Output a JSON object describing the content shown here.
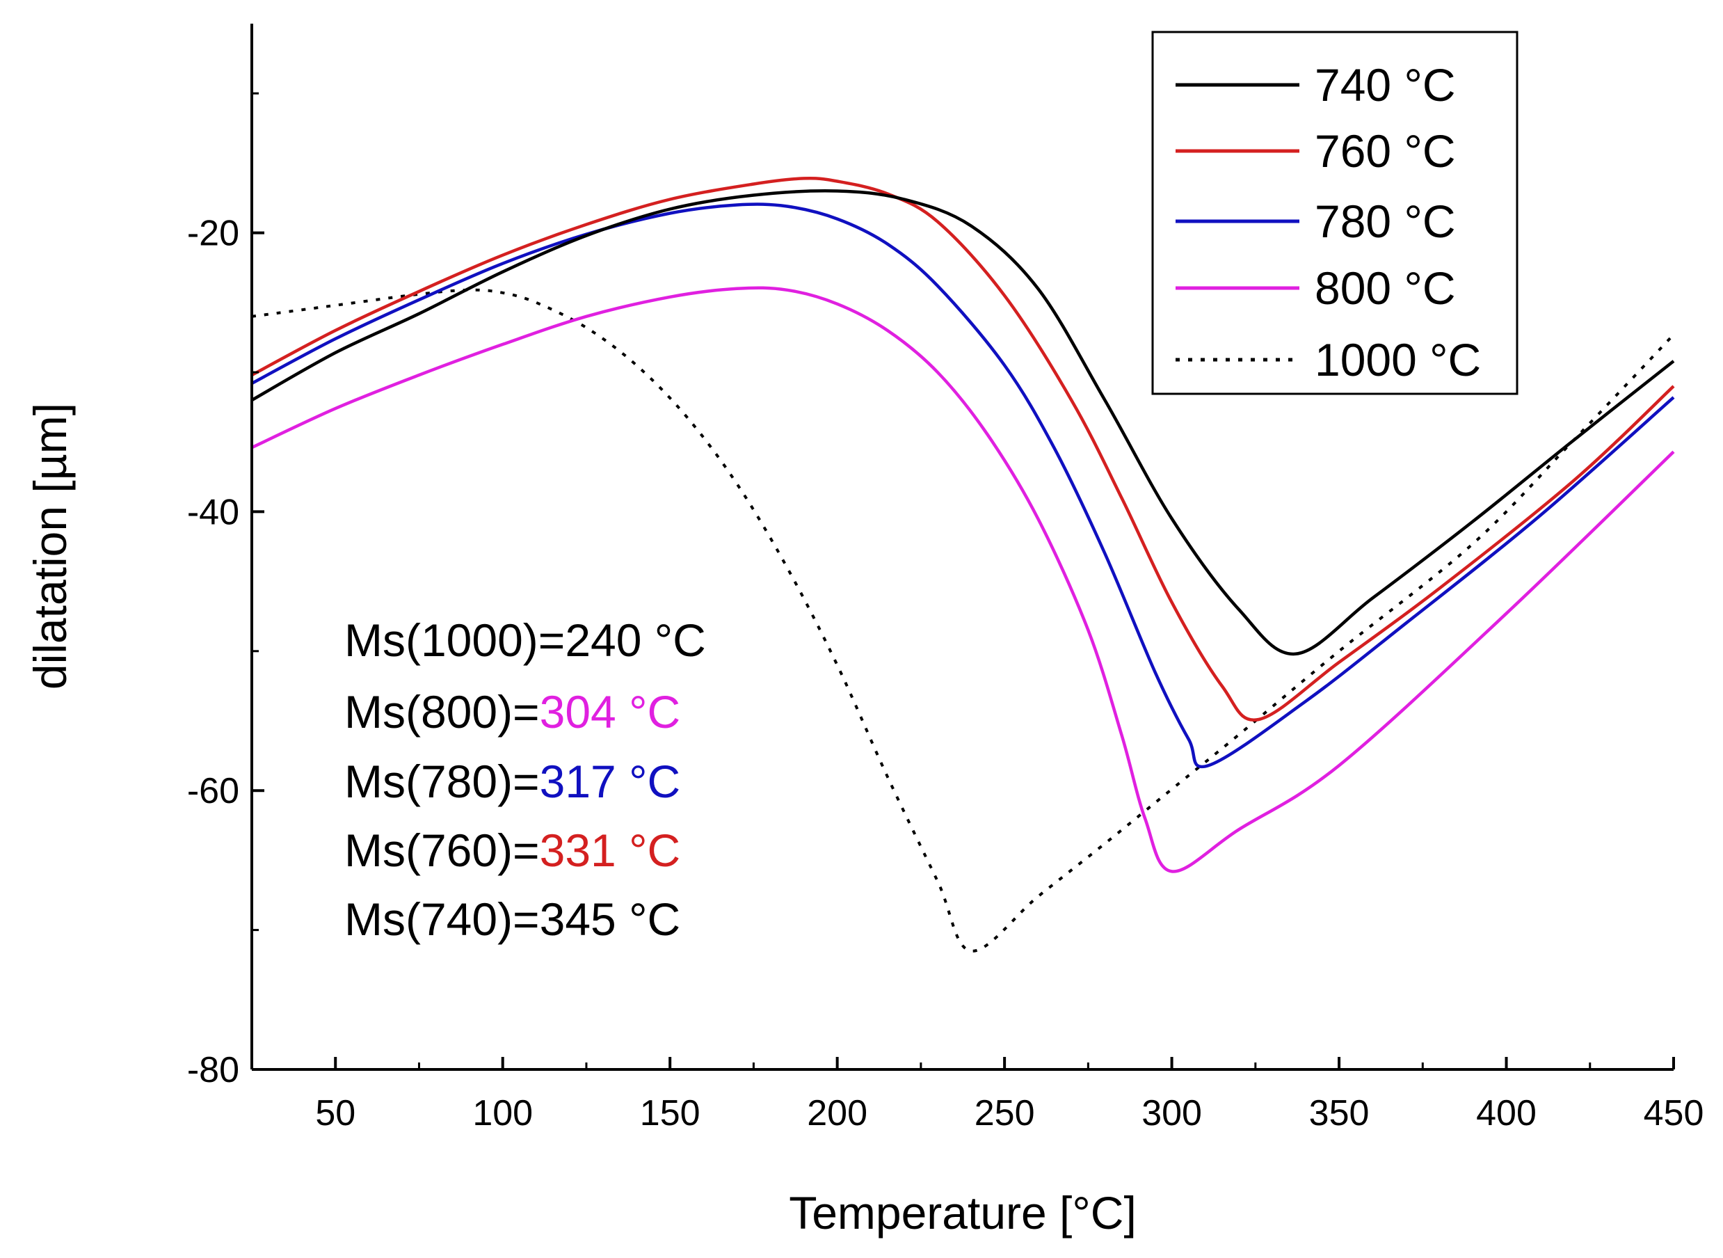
{
  "chart_data": {
    "type": "line",
    "title": "",
    "xlabel": "Temperature [°C]",
    "ylabel": "dilatation [µm]",
    "xlim": [
      25,
      450
    ],
    "ylim": [
      -80,
      -5
    ],
    "xticks": [
      50,
      100,
      150,
      200,
      250,
      300,
      350,
      400,
      450
    ],
    "yticks": [
      -80,
      -60,
      -40,
      -20
    ],
    "legend_position": "top-right",
    "series": [
      {
        "name": "740 °C",
        "color": "#000000",
        "dash": "solid",
        "x": [
          25,
          50,
          75,
          100,
          125,
          150,
          175,
          200,
          220,
          240,
          260,
          280,
          300,
          320,
          337,
          360,
          390,
          420,
          450
        ],
        "y": [
          -32,
          -28.6,
          -25.8,
          -22.8,
          -20.2,
          -18.3,
          -17.3,
          -17.0,
          -17.6,
          -19.5,
          -24,
          -32,
          -40.5,
          -47,
          -50.2,
          -46.2,
          -40.7,
          -34.9,
          -29.2
        ]
      },
      {
        "name": "760 °C",
        "color": "#d42020",
        "dash": "solid",
        "x": [
          25,
          50,
          75,
          100,
          125,
          150,
          175,
          190,
          200,
          215,
          230,
          250,
          270,
          285,
          300,
          315,
          326,
          350,
          380,
          420,
          450
        ],
        "y": [
          -30.2,
          -27.0,
          -24.2,
          -21.6,
          -19.4,
          -17.6,
          -16.5,
          -16.1,
          -16.3,
          -17.2,
          -19.2,
          -24.5,
          -32,
          -39,
          -46.5,
          -52.5,
          -54.9,
          -50.8,
          -45.5,
          -37.8,
          -31.0
        ]
      },
      {
        "name": "780 °C",
        "color": "#1010c0",
        "dash": "solid",
        "x": [
          25,
          50,
          75,
          100,
          125,
          150,
          170,
          185,
          200,
          215,
          230,
          250,
          265,
          280,
          295,
          305,
          311,
          340,
          370,
          410,
          450
        ],
        "y": [
          -30.8,
          -27.6,
          -24.8,
          -22.2,
          -20.1,
          -18.6,
          -18.0,
          -18.1,
          -19.0,
          -20.8,
          -23.8,
          -29.5,
          -35.5,
          -43,
          -51.5,
          -56.3,
          -58.2,
          -53.6,
          -48.0,
          -40.3,
          -31.8
        ]
      },
      {
        "name": "800 °C",
        "color": "#e020e0",
        "dash": "solid",
        "x": [
          25,
          50,
          75,
          100,
          125,
          150,
          170,
          185,
          200,
          215,
          230,
          245,
          260,
          275,
          285,
          292,
          300,
          320,
          350,
          400,
          450
        ],
        "y": [
          -35.4,
          -32.6,
          -30.2,
          -28.0,
          -26.0,
          -24.6,
          -24.0,
          -24.1,
          -25.1,
          -27.0,
          -30.0,
          -34.5,
          -40.5,
          -48.5,
          -56,
          -62,
          -65.8,
          -62.8,
          -58.2,
          -47.3,
          -35.7
        ]
      },
      {
        "name": "1000 °C",
        "color": "#000000",
        "dash": "dotted",
        "x": [
          25,
          50,
          75,
          90,
          100,
          110,
          125,
          140,
          155,
          170,
          185,
          200,
          215,
          230,
          240,
          260,
          280,
          300,
          320,
          350,
          390,
          420,
          450
        ],
        "y": [
          -26.0,
          -25.2,
          -24.4,
          -24.1,
          -24.3,
          -25.0,
          -26.8,
          -29.5,
          -33.2,
          -38,
          -44,
          -51,
          -59,
          -66.5,
          -71.5,
          -67.6,
          -63.8,
          -59.9,
          -56.0,
          -50.0,
          -42.3,
          -34.9,
          -27.3
        ]
      }
    ],
    "annotations": [
      {
        "label": "Ms(1000)=",
        "value": "240 °C",
        "value_color": "#000000"
      },
      {
        "label": "Ms(800)=",
        "value": "304 °C",
        "value_color": "#e020e0"
      },
      {
        "label": "Ms(780)=",
        "value": "317 °C",
        "value_color": "#1010c0"
      },
      {
        "label": "Ms(760)=",
        "value": "331 °C",
        "value_color": "#d42020"
      },
      {
        "label": "Ms(740)=",
        "value": "345 °C",
        "value_color": "#000000"
      }
    ]
  }
}
